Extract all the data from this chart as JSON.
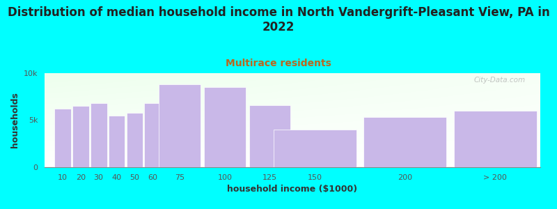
{
  "title": "Distribution of median household income in North Vandergrift-Pleasant View, PA in\n2022",
  "subtitle": "Multirace residents",
  "xlabel": "household income ($1000)",
  "ylabel": "households",
  "bar_labels": [
    "10",
    "20",
    "30",
    "40",
    "50",
    "60",
    "75",
    "100",
    "125",
    "150",
    "200",
    "> 200"
  ],
  "bar_centers": [
    10,
    20,
    30,
    40,
    50,
    60,
    75,
    100,
    125,
    150,
    200,
    250
  ],
  "bar_widths": [
    10,
    10,
    10,
    10,
    10,
    10,
    25,
    25,
    25,
    50,
    50,
    50
  ],
  "bar_values": [
    6200,
    6500,
    6800,
    5500,
    5800,
    6800,
    8800,
    8500,
    6600,
    4000,
    5300,
    6000
  ],
  "bar_color": "#c9b8e8",
  "bar_edgecolor": "#ffffff",
  "background_color": "#00ffff",
  "ylim": [
    0,
    10000
  ],
  "xlim": [
    0,
    275
  ],
  "ytick_vals": [
    0,
    5000,
    10000
  ],
  "ytick_labels": [
    "0",
    "5k",
    "10k"
  ],
  "xtick_positions": [
    10,
    20,
    30,
    40,
    50,
    60,
    75,
    100,
    125,
    150,
    200,
    250
  ],
  "xtick_labels": [
    "10",
    "20",
    "30",
    "40",
    "50",
    "60",
    "75",
    "100",
    "125",
    "150",
    "200",
    "> 200"
  ],
  "title_fontsize": 12,
  "subtitle_fontsize": 10,
  "subtitle_color": "#b86820",
  "axis_label_fontsize": 9,
  "tick_fontsize": 8,
  "watermark": "City-Data.com"
}
